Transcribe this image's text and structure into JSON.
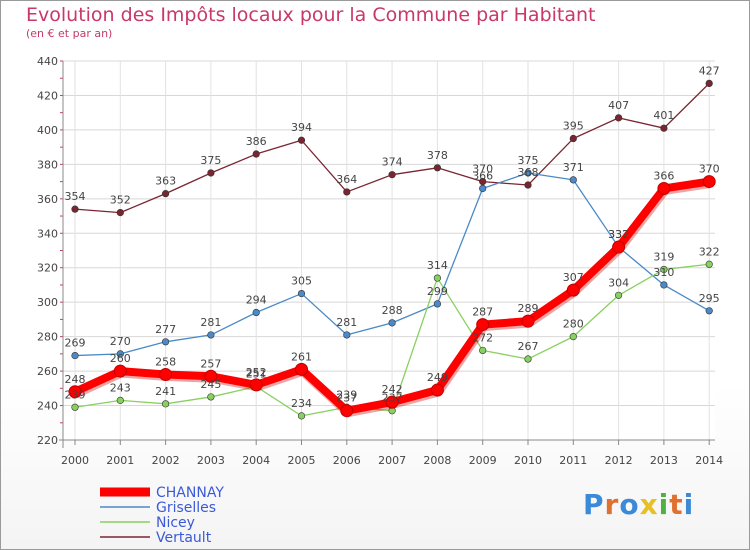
{
  "chart_data": {
    "type": "line",
    "title": "Evolution des Impôts locaux pour la Commune par Habitant",
    "subtitle": "(en € et par an)",
    "xlabel": "",
    "ylabel": "",
    "ylim": [
      220,
      440
    ],
    "yticks": [
      220,
      240,
      260,
      280,
      300,
      320,
      340,
      360,
      380,
      400,
      420,
      440
    ],
    "categories": [
      "2000",
      "2001",
      "2002",
      "2003",
      "2004",
      "2005",
      "2006",
      "2007",
      "2008",
      "2009",
      "2010",
      "2011",
      "2012",
      "2013",
      "2014"
    ],
    "series": [
      {
        "name": "CHANNAY",
        "color": "#ff0000",
        "values": [
          248,
          260,
          258,
          257,
          252,
          261,
          237,
          242,
          249,
          287,
          289,
          307,
          332,
          366,
          370
        ]
      },
      {
        "name": "Griselles",
        "color": "#4a8ac8",
        "values": [
          269,
          270,
          277,
          281,
          294,
          305,
          281,
          288,
          299,
          366,
          375,
          371,
          332,
          310,
          295
        ]
      },
      {
        "name": "Nicey",
        "color": "#88d060",
        "values": [
          239,
          243,
          241,
          245,
          251,
          234,
          239,
          237,
          314,
          272,
          267,
          280,
          304,
          319,
          322
        ]
      },
      {
        "name": "Vertault",
        "color": "#7a2630",
        "values": [
          354,
          352,
          363,
          375,
          386,
          394,
          364,
          374,
          378,
          370,
          368,
          395,
          407,
          401,
          427
        ]
      }
    ],
    "legend": "bottom-left",
    "grid": true
  },
  "logo": {
    "text": "Proxiti",
    "colors": [
      "#3a8ad8",
      "#e07030",
      "#3a8ad8",
      "#e8c020",
      "#50b040",
      "#e07030",
      "#3a8ad8"
    ]
  }
}
